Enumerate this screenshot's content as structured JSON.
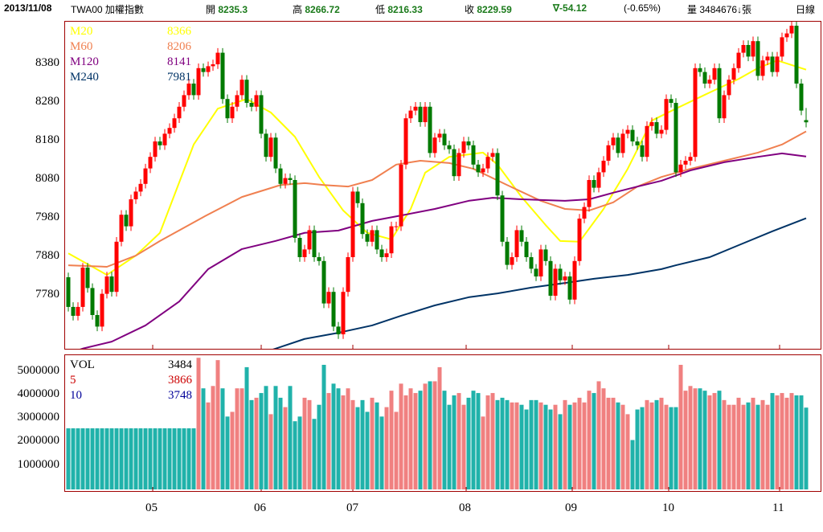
{
  "header": {
    "date": "2013/11/08",
    "symbol": "TWA00 加權指數",
    "open_label": "開",
    "open": "8235.3",
    "high_label": "高",
    "high": "8266.72",
    "low_label": "低",
    "low": "8216.33",
    "close_label": "收",
    "close": "8229.59",
    "change": "∇-54.12",
    "change_pct": "(-0.65%)",
    "volume_label": "量",
    "volume": "3484676↓張",
    "period": "日線"
  },
  "price_legend": [
    {
      "name": "M20",
      "value": "8366",
      "color": "#ffff00"
    },
    {
      "name": "M60",
      "value": "8206",
      "color": "#f08050"
    },
    {
      "name": "M120",
      "value": "8141",
      "color": "#800080"
    },
    {
      "name": "M240",
      "value": "7981",
      "color": "#003366"
    }
  ],
  "volume_legend": [
    {
      "name": "VOL",
      "value": "3484",
      "color": "#000000"
    },
    {
      "name": "5",
      "value": "3866",
      "color": "#cc0000"
    },
    {
      "name": "10",
      "value": "3748",
      "color": "#000099"
    }
  ],
  "colors": {
    "up": "#ff0000",
    "down": "#007a00",
    "vol_up": "#f08080",
    "vol_down": "#20b2aa",
    "frame": "#a00000"
  },
  "chart_data": {
    "type": "candlestick",
    "price_ylim": [
      7642,
      8488
    ],
    "price_ticks": [
      "8380",
      "8280",
      "8180",
      "8080",
      "7980",
      "7880",
      "7780"
    ],
    "volume_ylim": [
      0,
      5800000
    ],
    "volume_ticks": [
      "5000000",
      "4000000",
      "3000000",
      "2000000",
      "1000000"
    ],
    "x_month_labels": [
      {
        "label": "05",
        "index": 17.5
      },
      {
        "label": "06",
        "index": 40
      },
      {
        "label": "07",
        "index": 59
      },
      {
        "label": "08",
        "index": 82.5
      },
      {
        "label": "09",
        "index": 104.5
      },
      {
        "label": "10",
        "index": 124.5
      },
      {
        "label": "11",
        "index": 147.5
      }
    ],
    "first_open": 7828,
    "last_candle": {
      "open": 8235.3,
      "high": 8266.72,
      "low": 8216.33,
      "close": 8229.59
    },
    "closes": [
      7751,
      7728,
      7751,
      7853,
      7800,
      7730,
      7700,
      7785,
      7830,
      7790,
      7920,
      7990,
      7960,
      8030,
      8050,
      8070,
      8110,
      8140,
      8180,
      8170,
      8200,
      8215,
      8240,
      8270,
      8300,
      8330,
      8300,
      8370,
      8360,
      8375,
      8380,
      8410,
      8290,
      8240,
      8270,
      8300,
      8340,
      8280,
      8270,
      8300,
      8200,
      8140,
      8190,
      8110,
      8070,
      8085,
      8080,
      7930,
      7880,
      7900,
      7950,
      7880,
      7870,
      7760,
      7790,
      7700,
      7680,
      7790,
      7880,
      8050,
      8020,
      7940,
      7920,
      7950,
      7900,
      7880,
      7890,
      7960,
      7960,
      8120,
      8240,
      8260,
      8270,
      8230,
      8270,
      8150,
      8190,
      8200,
      8170,
      8160,
      8090,
      8150,
      8180,
      8170,
      8120,
      8100,
      8110,
      8140,
      8150,
      8040,
      7920,
      7860,
      7880,
      7950,
      7920,
      7880,
      7850,
      7830,
      7900,
      7870,
      7780,
      7850,
      7820,
      7830,
      7770,
      7870,
      7980,
      8010,
      8080,
      8060,
      8100,
      8130,
      8170,
      8190,
      8150,
      8200,
      8210,
      8180,
      8170,
      8140,
      8220,
      8230,
      8200,
      8210,
      8290,
      8280,
      8100,
      8120,
      8130,
      8140,
      8370,
      8360,
      8330,
      8340,
      8370,
      8240,
      8300,
      8340,
      8370,
      8410,
      8430,
      8400,
      8440,
      8350,
      8390,
      8400,
      8360,
      8400,
      8450,
      8460,
      8480,
      8330,
      8260,
      8229.59
    ],
    "volume_millions": [
      2.6,
      2.6,
      2.6,
      2.6,
      2.6,
      2.6,
      2.6,
      2.6,
      2.6,
      2.6,
      2.6,
      2.6,
      2.6,
      2.6,
      2.6,
      2.6,
      2.6,
      2.6,
      2.6,
      2.6,
      2.6,
      2.6,
      2.6,
      2.6,
      2.6,
      2.6,
      2.6,
      5.6,
      4.3,
      3.7,
      4.4,
      5.5,
      4.3,
      3.1,
      3.3,
      4.3,
      4.3,
      5.2,
      3.8,
      3.9,
      4.1,
      4.4,
      3.2,
      4.4,
      3.9,
      3.5,
      4.4,
      2.9,
      3.1,
      3.9,
      3.8,
      3.0,
      3.6,
      5.3,
      4.1,
      4.5,
      4.3,
      4.0,
      4.3,
      3.8,
      3.5,
      3.8,
      3.3,
      3.9,
      3.7,
      3.1,
      3.5,
      4.2,
      3.3,
      4.5,
      4.0,
      4.3,
      4.1,
      4.2,
      4.5,
      4.6,
      4.6,
      5.2,
      4.2,
      3.6,
      4.0,
      4.1,
      3.6,
      3.9,
      4.2,
      4.1,
      3.1,
      4.0,
      4.1,
      3.8,
      3.9,
      3.8,
      3.7,
      3.7,
      3.6,
      3.4,
      3.8,
      3.8,
      3.7,
      3.6,
      3.4,
      3.6,
      3.2,
      3.8,
      3.6,
      3.7,
      3.9,
      3.7,
      4.2,
      4.1,
      4.6,
      4.3,
      3.9,
      3.9,
      3.7,
      3.6,
      3.2,
      2.1,
      3.4,
      3.5,
      3.8,
      3.7,
      3.8,
      3.9,
      3.6,
      3.5,
      3.5,
      5.3,
      4.2,
      4.4,
      4.3,
      4.3,
      4.2,
      4.0,
      4.1,
      4.2,
      3.8,
      3.6,
      3.6,
      3.9,
      3.6,
      3.7,
      3.9,
      3.6,
      3.8,
      3.6,
      4.1,
      4.0,
      4.1,
      3.9,
      4.1,
      4.0,
      4.0,
      3.48
    ],
    "moving_averages": [
      {
        "name": "M20",
        "points": [
          [
            0,
            7890
          ],
          [
            8,
            7834
          ],
          [
            14,
            7884
          ],
          [
            19,
            7943
          ],
          [
            26,
            8172
          ],
          [
            31,
            8265
          ],
          [
            37,
            8290
          ],
          [
            42,
            8255
          ],
          [
            47,
            8192
          ],
          [
            52,
            8088
          ],
          [
            57,
            8001
          ],
          [
            62,
            7943
          ],
          [
            67,
            7926
          ],
          [
            71,
            8005
          ],
          [
            74,
            8099
          ],
          [
            79,
            8140
          ],
          [
            86,
            8151
          ],
          [
            89,
            8120
          ],
          [
            94,
            8036
          ],
          [
            99,
            7963
          ],
          [
            102,
            7922
          ],
          [
            106,
            7920
          ],
          [
            111,
            8005
          ],
          [
            116,
            8109
          ],
          [
            121,
            8234
          ],
          [
            126,
            8265
          ],
          [
            132,
            8301
          ],
          [
            139,
            8342
          ],
          [
            143,
            8370
          ],
          [
            147,
            8390
          ],
          [
            153,
            8366
          ]
        ]
      },
      {
        "name": "M60",
        "points": [
          [
            0,
            7859
          ],
          [
            8,
            7855
          ],
          [
            14,
            7884
          ],
          [
            19,
            7922
          ],
          [
            28,
            7984
          ],
          [
            36,
            8036
          ],
          [
            44,
            8067
          ],
          [
            49,
            8072
          ],
          [
            53,
            8067
          ],
          [
            58,
            8063
          ],
          [
            63,
            8080
          ],
          [
            68,
            8120
          ],
          [
            73,
            8130
          ],
          [
            79,
            8124
          ],
          [
            84,
            8109
          ],
          [
            91,
            8067
          ],
          [
            98,
            8026
          ],
          [
            103,
            8005
          ],
          [
            108,
            8001
          ],
          [
            113,
            8022
          ],
          [
            118,
            8063
          ],
          [
            123,
            8088
          ],
          [
            129,
            8109
          ],
          [
            136,
            8130
          ],
          [
            143,
            8151
          ],
          [
            148,
            8172
          ],
          [
            153,
            8206
          ]
        ]
      },
      {
        "name": "M120",
        "points": [
          [
            0,
            7630
          ],
          [
            3,
            7643
          ],
          [
            9,
            7661
          ],
          [
            16,
            7703
          ],
          [
            23,
            7765
          ],
          [
            29,
            7849
          ],
          [
            36,
            7901
          ],
          [
            43,
            7922
          ],
          [
            49,
            7943
          ],
          [
            56,
            7949
          ],
          [
            63,
            7974
          ],
          [
            69,
            7988
          ],
          [
            76,
            8005
          ],
          [
            83,
            8026
          ],
          [
            88,
            8034
          ],
          [
            94,
            8030
          ],
          [
            103,
            8026
          ],
          [
            108,
            8030
          ],
          [
            113,
            8047
          ],
          [
            118,
            8063
          ],
          [
            123,
            8078
          ],
          [
            129,
            8105
          ],
          [
            136,
            8126
          ],
          [
            143,
            8140
          ],
          [
            148,
            8149
          ],
          [
            153,
            8141
          ]
        ]
      },
      {
        "name": "M240",
        "points": [
          [
            40,
            7630
          ],
          [
            43,
            7643
          ],
          [
            49,
            7668
          ],
          [
            56,
            7684
          ],
          [
            63,
            7703
          ],
          [
            69,
            7728
          ],
          [
            76,
            7755
          ],
          [
            83,
            7776
          ],
          [
            89,
            7786
          ],
          [
            96,
            7801
          ],
          [
            103,
            7813
          ],
          [
            109,
            7824
          ],
          [
            116,
            7834
          ],
          [
            123,
            7849
          ],
          [
            126,
            7859
          ],
          [
            133,
            7880
          ],
          [
            139,
            7911
          ],
          [
            146,
            7947
          ],
          [
            153,
            7981
          ]
        ]
      }
    ]
  }
}
